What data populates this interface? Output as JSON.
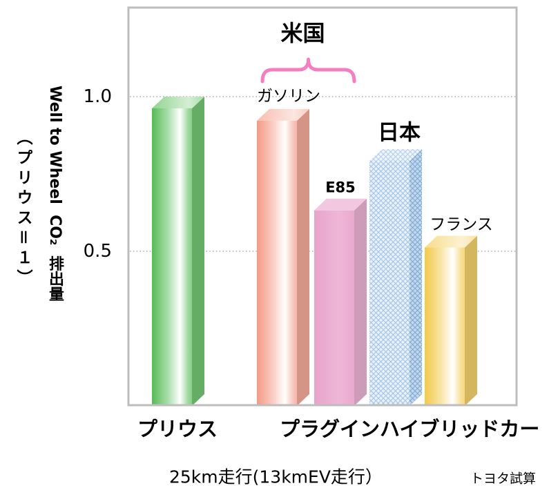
{
  "chart_data": {
    "type": "bar",
    "categories": [
      "プリウス",
      "ガソリン",
      "E85",
      "日本",
      "フランス"
    ],
    "values": [
      1.0,
      0.96,
      0.67,
      0.83,
      0.55
    ],
    "colors": [
      "#55bb55",
      "#f49a86",
      "#e9a3cc",
      "#8db6e3",
      "#f2c94a"
    ],
    "ylabel": "Well to Wheel  CO₂  排出量",
    "ylabel_sub": "（プリウス＝１）",
    "yticks": [
      {
        "value": 0.5,
        "label": "0.5"
      },
      {
        "value": 1.0,
        "label": "1.0"
      }
    ],
    "ylim": [
      0,
      1.29
    ],
    "grid": true,
    "category_groups": [
      {
        "label": "プラグインハイブリッドカー",
        "members": [
          1,
          2,
          3,
          4
        ]
      }
    ],
    "brackets": [
      {
        "label": "米国",
        "members": [
          1,
          2
        ],
        "color": "#f47ec0"
      }
    ],
    "xlabel": "25km走行(13kmEV走行）"
  },
  "source_note": "トヨタ試算"
}
